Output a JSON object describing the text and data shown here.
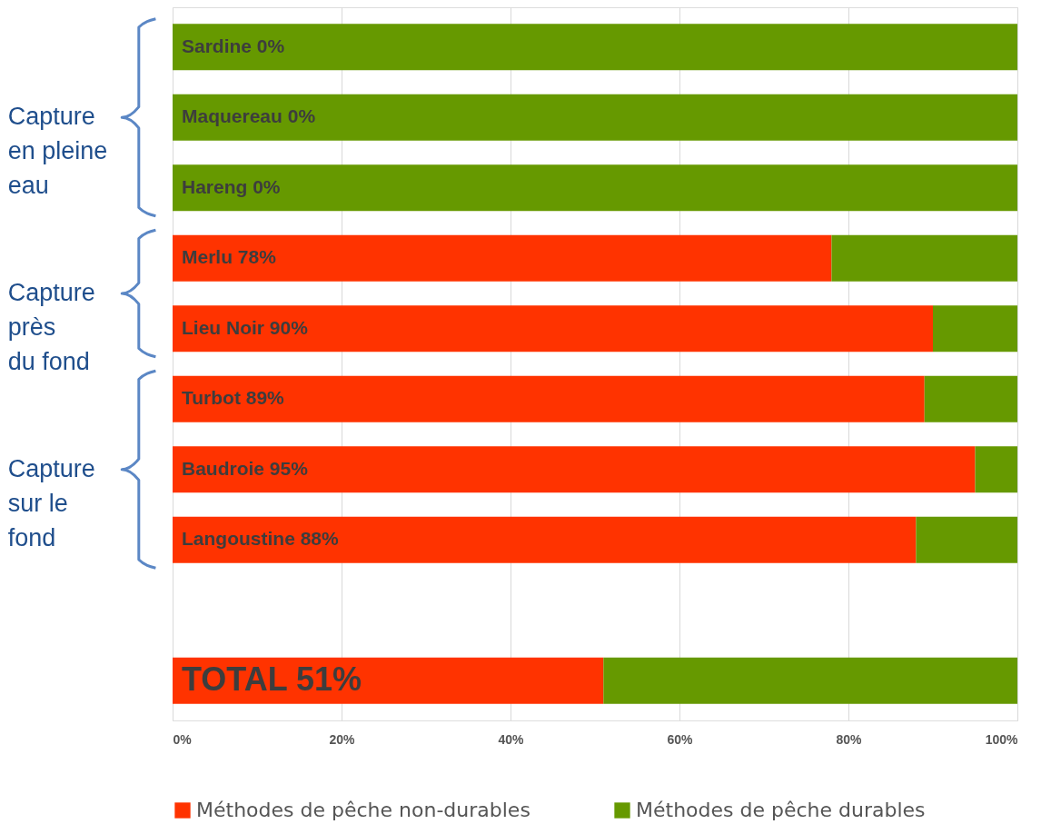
{
  "chart_data": {
    "type": "bar",
    "orientation": "horizontal",
    "stacked": true,
    "categories": [
      "Sardine",
      "Maquereau",
      "Hareng",
      "Merlu",
      "Lieu Noir",
      "Turbot",
      "Baudroie",
      "Langoustine",
      null,
      "TOTAL"
    ],
    "series": [
      {
        "name": "Méthodes de pêche non-durables",
        "color": "#ff3300",
        "values": [
          0,
          0,
          0,
          78,
          90,
          89,
          95,
          88,
          null,
          51
        ],
        "value_labels": [
          "0%",
          "0%",
          "0%",
          "78%",
          "90%",
          "89%",
          "95%",
          "88%",
          null,
          "51%"
        ]
      },
      {
        "name": "Méthodes de pêche durables",
        "color": "#669900",
        "values": [
          100,
          100,
          100,
          22,
          10,
          11,
          5,
          12,
          null,
          49
        ]
      }
    ],
    "xlim": [
      0,
      100
    ],
    "xticks": [
      {
        "value": 0,
        "label": "0%"
      },
      {
        "value": 20,
        "label": "20%"
      },
      {
        "value": 40,
        "label": "40%"
      },
      {
        "value": 60,
        "label": "60%"
      },
      {
        "value": 80,
        "label": "80%"
      },
      {
        "value": 100,
        "label": "100%"
      }
    ],
    "grid": "x",
    "legend": "bottom",
    "tick_labels": "x",
    "annotations": [
      "Capture\nen pleine\neau",
      "Capture\nprès\ndu fond",
      "Capture\nsur le\nfond"
    ]
  }
}
